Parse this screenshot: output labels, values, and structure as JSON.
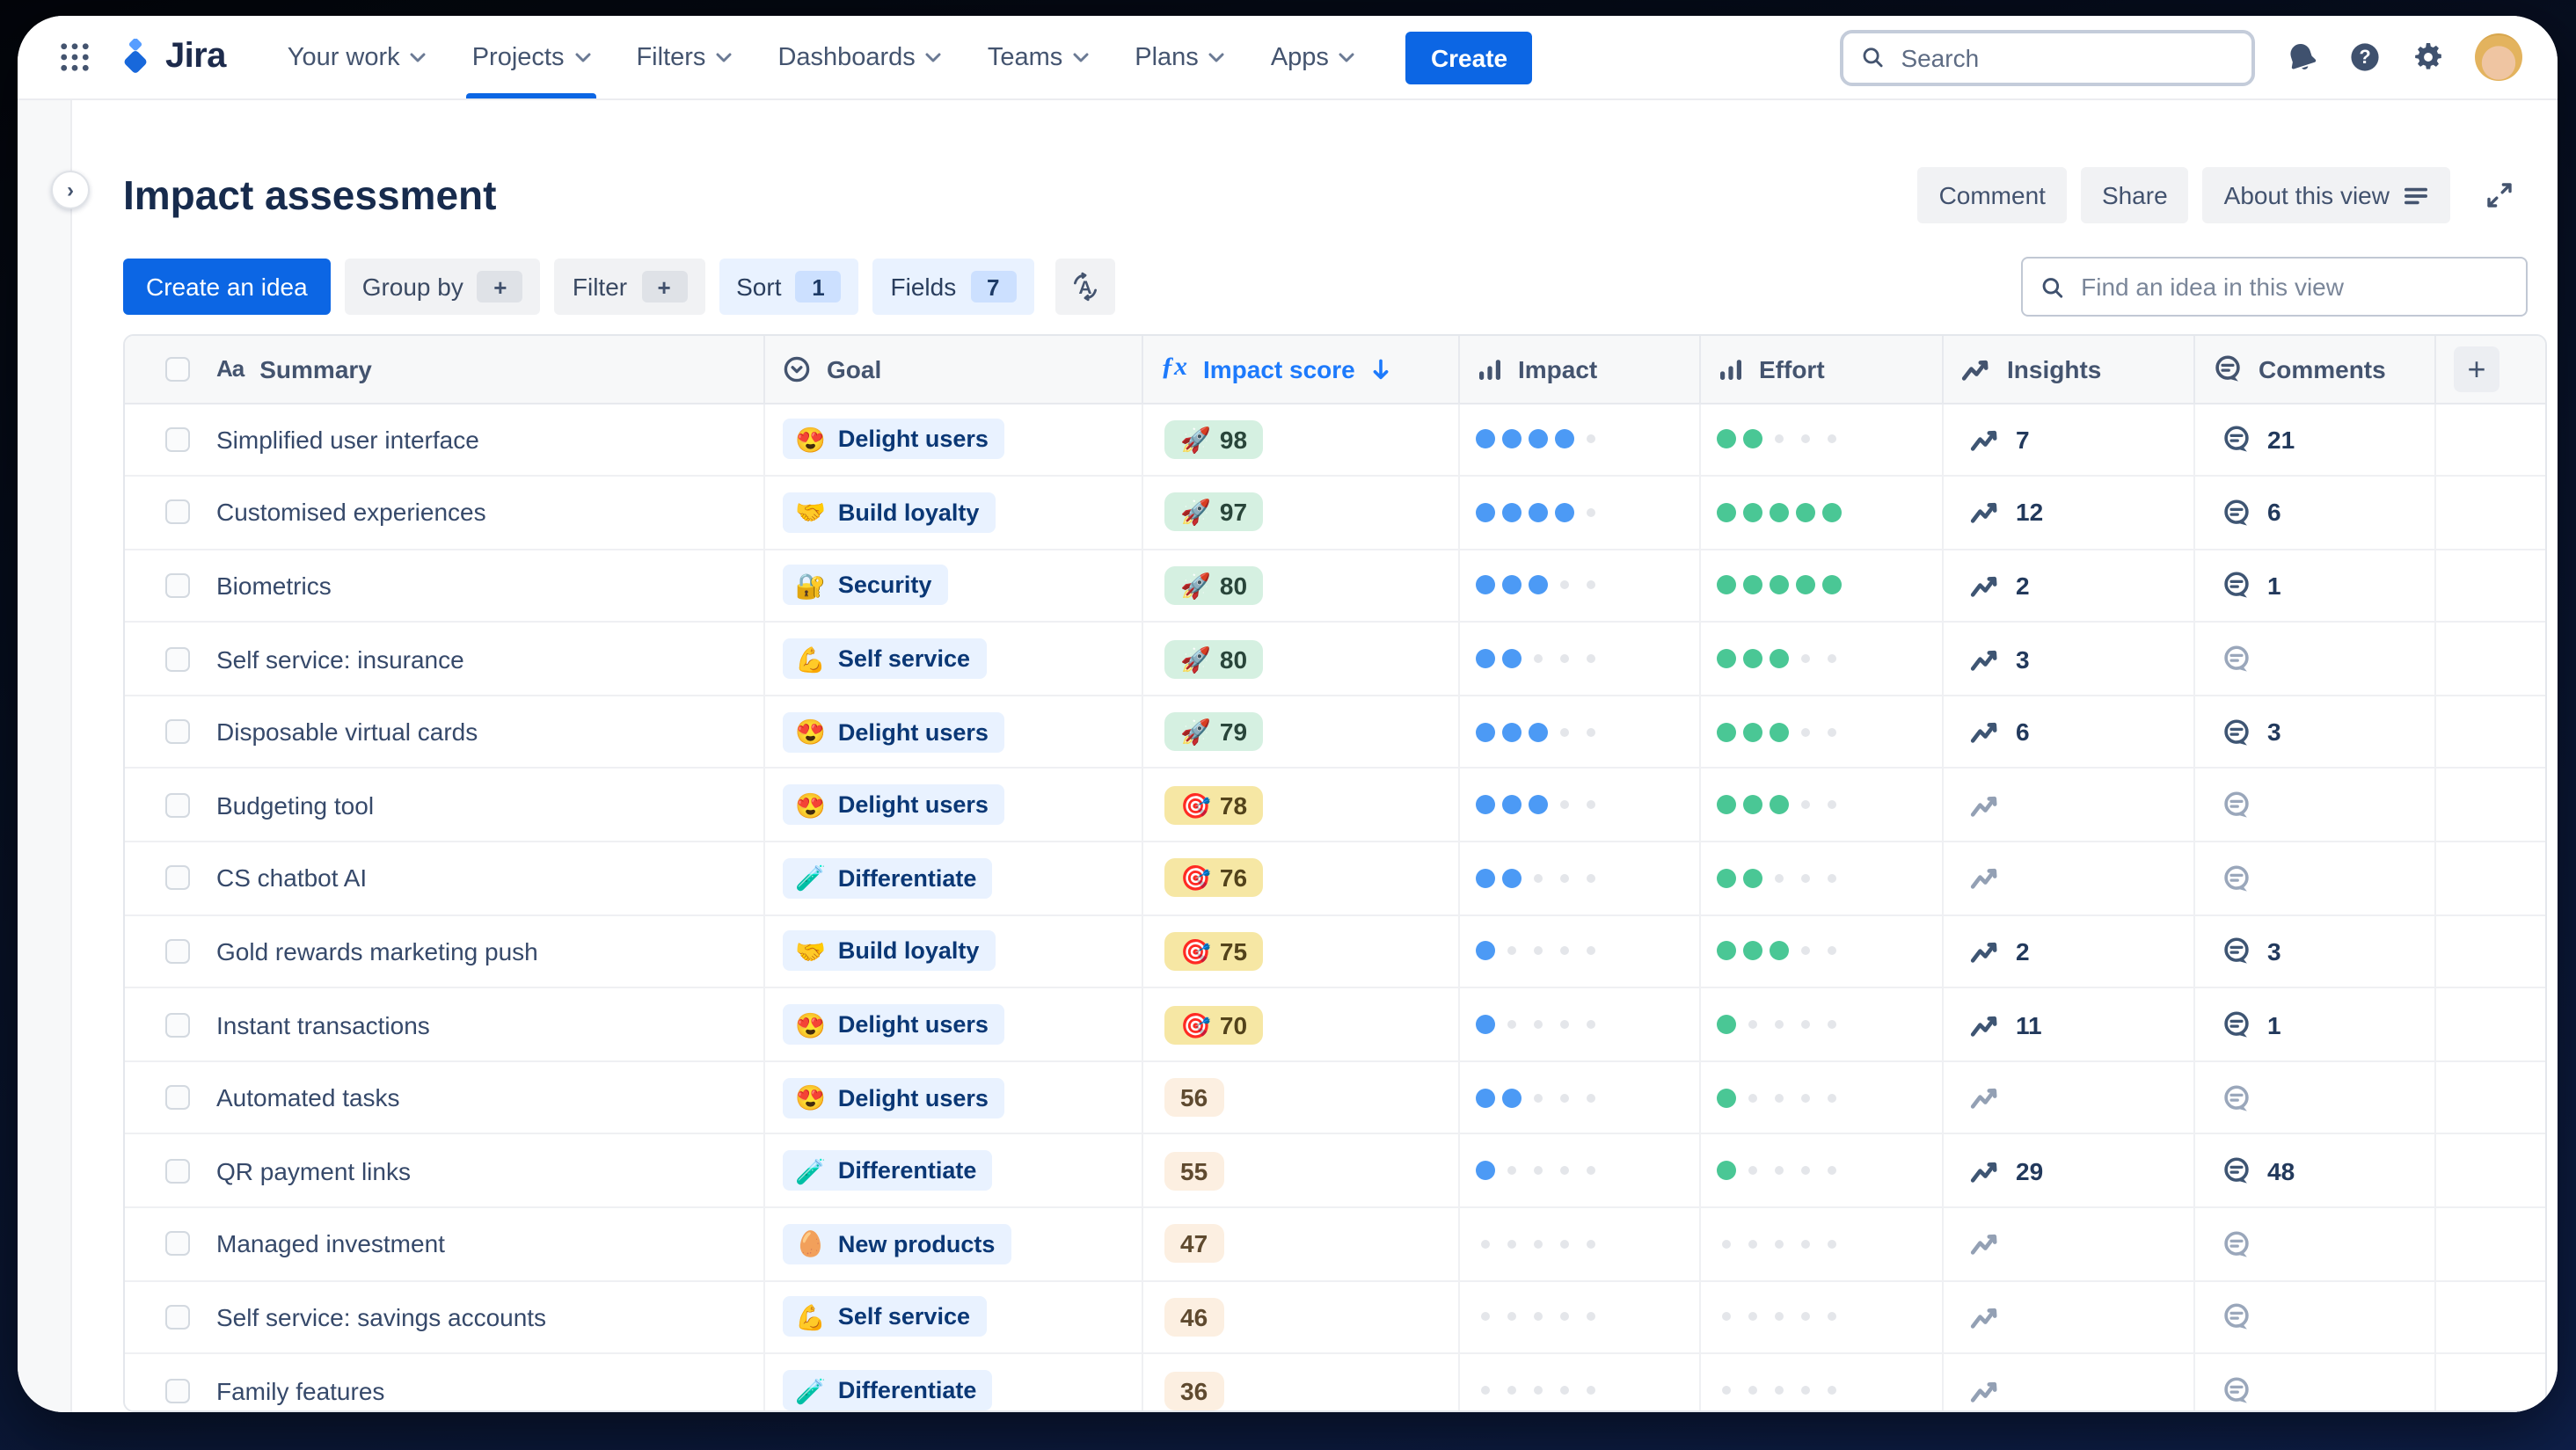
{
  "nav": {
    "logo_text": "Jira",
    "items": [
      {
        "label": "Your work",
        "active": false
      },
      {
        "label": "Projects",
        "active": true
      },
      {
        "label": "Filters",
        "active": false
      },
      {
        "label": "Dashboards",
        "active": false
      },
      {
        "label": "Teams",
        "active": false
      },
      {
        "label": "Plans",
        "active": false
      },
      {
        "label": "Apps",
        "active": false
      }
    ],
    "create_label": "Create",
    "search_placeholder": "Search"
  },
  "page": {
    "title": "Impact assessment",
    "actions": [
      "Comment",
      "Share",
      "About this view"
    ]
  },
  "toolbar": {
    "create_idea_label": "Create an idea",
    "chips": [
      {
        "label": "Group by",
        "badge": "+",
        "selected": false
      },
      {
        "label": "Filter",
        "badge": "+",
        "selected": false
      },
      {
        "label": "Sort",
        "badge": "1",
        "selected": true
      },
      {
        "label": "Fields",
        "badge": "7",
        "selected": true
      }
    ],
    "find_placeholder": "Find an idea in this view"
  },
  "table": {
    "columns": [
      "Summary",
      "Goal",
      "Impact score",
      "Impact",
      "Effort",
      "Insights",
      "Comments"
    ],
    "sort_column": "Impact score",
    "sort_direction": "desc",
    "rows": [
      {
        "summary": "Simplified user interface",
        "goal": "Delight users",
        "goal_emoji": "😍",
        "score": 98,
        "score_emoji": "🚀",
        "tier": "high",
        "impact": 4,
        "effort": 2,
        "insights": 7,
        "comments": 21
      },
      {
        "summary": "Customised experiences",
        "goal": "Build loyalty",
        "goal_emoji": "🤝",
        "score": 97,
        "score_emoji": "🚀",
        "tier": "high",
        "impact": 4,
        "effort": 5,
        "insights": 12,
        "comments": 6
      },
      {
        "summary": "Biometrics",
        "goal": "Security",
        "goal_emoji": "🔐",
        "score": 80,
        "score_emoji": "🚀",
        "tier": "high",
        "impact": 3,
        "effort": 5,
        "insights": 2,
        "comments": 1
      },
      {
        "summary": "Self service: insurance",
        "goal": "Self service",
        "goal_emoji": "💪",
        "score": 80,
        "score_emoji": "🚀",
        "tier": "high",
        "impact": 2,
        "effort": 3,
        "insights": 3,
        "comments": null
      },
      {
        "summary": "Disposable virtual cards",
        "goal": "Delight users",
        "goal_emoji": "😍",
        "score": 79,
        "score_emoji": "🚀",
        "tier": "high",
        "impact": 3,
        "effort": 3,
        "insights": 6,
        "comments": 3
      },
      {
        "summary": "Budgeting tool",
        "goal": "Delight users",
        "goal_emoji": "😍",
        "score": 78,
        "score_emoji": "🎯",
        "tier": "mid",
        "impact": 3,
        "effort": 3,
        "insights": null,
        "comments": null
      },
      {
        "summary": "CS chatbot AI",
        "goal": "Differentiate",
        "goal_emoji": "🧪",
        "score": 76,
        "score_emoji": "🎯",
        "tier": "mid",
        "impact": 2,
        "effort": 2,
        "insights": null,
        "comments": null
      },
      {
        "summary": "Gold rewards marketing push",
        "goal": "Build loyalty",
        "goal_emoji": "🤝",
        "score": 75,
        "score_emoji": "🎯",
        "tier": "mid",
        "impact": 1,
        "effort": 3,
        "insights": 2,
        "comments": 3
      },
      {
        "summary": "Instant transactions",
        "goal": "Delight users",
        "goal_emoji": "😍",
        "score": 70,
        "score_emoji": "🎯",
        "tier": "mid",
        "impact": 1,
        "effort": 1,
        "insights": 11,
        "comments": 1
      },
      {
        "summary": "Automated tasks",
        "goal": "Delight users",
        "goal_emoji": "😍",
        "score": 56,
        "score_emoji": "",
        "tier": "low",
        "impact": 2,
        "effort": 1,
        "insights": null,
        "comments": null
      },
      {
        "summary": "QR payment links",
        "goal": "Differentiate",
        "goal_emoji": "🧪",
        "score": 55,
        "score_emoji": "",
        "tier": "low",
        "impact": 1,
        "effort": 1,
        "insights": 29,
        "comments": 48
      },
      {
        "summary": "Managed investment",
        "goal": "New products",
        "goal_emoji": "🥚",
        "score": 47,
        "score_emoji": "",
        "tier": "low",
        "impact": 0,
        "effort": 0,
        "insights": null,
        "comments": null
      },
      {
        "summary": "Self service: savings accounts",
        "goal": "Self service",
        "goal_emoji": "💪",
        "score": 46,
        "score_emoji": "",
        "tier": "low",
        "impact": 0,
        "effort": 0,
        "insights": null,
        "comments": null
      },
      {
        "summary": "Family features",
        "goal": "Differentiate",
        "goal_emoji": "🧪",
        "score": 36,
        "score_emoji": "",
        "tier": "low",
        "impact": 0,
        "effort": 0,
        "insights": null,
        "comments": null
      }
    ]
  },
  "colors": {
    "accent_blue": "#0C66E4",
    "sorted_header_blue": "#1D7AFC",
    "impact_dot_blue": "#4C9AF5",
    "effort_dot_green": "#4AC795",
    "empty_dot_gray": "#E4E6EA",
    "goal_chip_bg": "#E9F2FF",
    "score_high_bg": "#D5F0E1",
    "score_mid_bg": "#F6E7A4",
    "score_low_bg": "#FCEFE1",
    "header_bg": "#F7F8F9",
    "frame_navy": "#0e1f49"
  }
}
